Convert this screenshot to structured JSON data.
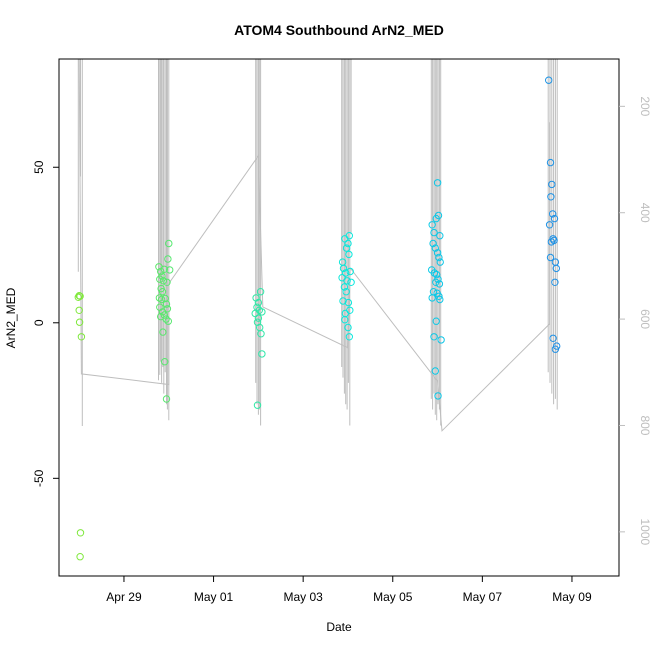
{
  "chart_data": {
    "type": "scatter",
    "title": "ATOM4 Southbound ArN2_MED",
    "xlabel": "Date",
    "ylabel": "ArN2_MED",
    "x_ticks": [
      "Apr 29",
      "May 01",
      "May 03",
      "May 05",
      "May 07",
      "May 09"
    ],
    "x_tick_days": [
      0,
      2,
      4,
      6,
      8,
      10
    ],
    "xlim_days": [
      -1.45,
      11.05
    ],
    "y_ticks": [
      -50,
      0,
      50
    ],
    "ylim": [
      -81.4,
      84.8
    ],
    "y2_ticks": [
      200,
      400,
      600,
      800,
      1000
    ],
    "y2lim": [
      1083,
      111
    ],
    "y2_reversed": true,
    "grid": false,
    "point_color_low": "#7fe83a",
    "point_color_high": "#1f8fe6",
    "line_color": "#bebebe",
    "series": [
      {
        "points": [
          [
            -1.0,
            8.7
          ],
          [
            -0.98,
            8.5
          ],
          [
            -1.02,
            8.2
          ],
          [
            -1.0,
            4.0
          ],
          [
            -0.99,
            0.2
          ],
          [
            -0.95,
            -4.5
          ],
          [
            -0.97,
            -67.5
          ],
          [
            -0.98,
            -75.2
          ],
          [
            0.78,
            18.0
          ],
          [
            0.82,
            16.5
          ],
          [
            0.85,
            15.0
          ],
          [
            0.8,
            14.0
          ],
          [
            0.88,
            13.5
          ],
          [
            0.9,
            17.2
          ],
          [
            0.83,
            11.0
          ],
          [
            0.86,
            10.0
          ],
          [
            0.79,
            8.0
          ],
          [
            0.84,
            7.5
          ],
          [
            0.92,
            7.8
          ],
          [
            0.95,
            6.0
          ],
          [
            0.97,
            4.5
          ],
          [
            0.8,
            5.0
          ],
          [
            0.86,
            3.5
          ],
          [
            0.9,
            2.5
          ],
          [
            0.82,
            2.0
          ],
          [
            0.94,
            1.2
          ],
          [
            1.0,
            25.5
          ],
          [
            0.98,
            20.5
          ],
          [
            1.02,
            17.0
          ],
          [
            0.96,
            13.0
          ],
          [
            0.99,
            0.5
          ],
          [
            0.87,
            -3.0
          ],
          [
            0.91,
            -12.5
          ],
          [
            0.95,
            -24.5
          ],
          [
            2.95,
            8.0
          ],
          [
            3.0,
            6.5
          ],
          [
            3.05,
            10.0
          ],
          [
            2.97,
            5.0
          ],
          [
            3.02,
            4.0
          ],
          [
            3.08,
            3.5
          ],
          [
            2.93,
            3.0
          ],
          [
            3.0,
            1.5
          ],
          [
            2.98,
            0.2
          ],
          [
            3.03,
            -1.5
          ],
          [
            3.06,
            -3.5
          ],
          [
            3.08,
            -10.0
          ],
          [
            2.98,
            -26.5
          ],
          [
            4.88,
            19.5
          ],
          [
            4.93,
            27.0
          ],
          [
            4.97,
            24.0
          ],
          [
            5.03,
            28.0
          ],
          [
            5.0,
            25.5
          ],
          [
            5.02,
            22.0
          ],
          [
            4.9,
            17.5
          ],
          [
            4.95,
            16.0
          ],
          [
            5.05,
            16.5
          ],
          [
            4.87,
            14.5
          ],
          [
            4.98,
            13.5
          ],
          [
            5.07,
            13.0
          ],
          [
            4.92,
            11.5
          ],
          [
            4.96,
            10.0
          ],
          [
            4.89,
            7.0
          ],
          [
            5.01,
            6.5
          ],
          [
            4.94,
            3.0
          ],
          [
            5.04,
            4.0
          ],
          [
            4.93,
            1.0
          ],
          [
            5.0,
            -1.5
          ],
          [
            5.03,
            -4.5
          ],
          [
            6.88,
            31.5
          ],
          [
            6.92,
            29.0
          ],
          [
            6.97,
            33.5
          ],
          [
            7.02,
            34.5
          ],
          [
            7.0,
            45.0
          ],
          [
            7.05,
            28.0
          ],
          [
            6.9,
            25.5
          ],
          [
            6.95,
            24.0
          ],
          [
            7.0,
            22.5
          ],
          [
            7.03,
            21.0
          ],
          [
            7.06,
            19.5
          ],
          [
            6.87,
            17.0
          ],
          [
            6.93,
            16.0
          ],
          [
            6.98,
            15.5
          ],
          [
            7.01,
            14.0
          ],
          [
            7.04,
            12.5
          ],
          [
            6.96,
            13.0
          ],
          [
            6.91,
            10.0
          ],
          [
            6.99,
            9.5
          ],
          [
            7.03,
            8.5
          ],
          [
            7.05,
            7.5
          ],
          [
            6.88,
            8.0
          ],
          [
            6.97,
            0.5
          ],
          [
            6.92,
            -4.5
          ],
          [
            7.08,
            -5.5
          ],
          [
            6.95,
            -15.5
          ],
          [
            7.01,
            -23.5
          ],
          [
            9.48,
            78.0
          ],
          [
            9.52,
            51.5
          ],
          [
            9.55,
            44.5
          ],
          [
            9.53,
            40.5
          ],
          [
            9.57,
            35.0
          ],
          [
            9.61,
            33.5
          ],
          [
            9.5,
            31.5
          ],
          [
            9.58,
            27.0
          ],
          [
            9.54,
            26.0
          ],
          [
            9.6,
            26.5
          ],
          [
            9.52,
            21.0
          ],
          [
            9.63,
            19.5
          ],
          [
            9.65,
            17.5
          ],
          [
            9.62,
            13.0
          ],
          [
            9.58,
            -5.0
          ],
          [
            9.66,
            -7.5
          ],
          [
            9.63,
            -8.5
          ]
        ]
      }
    ],
    "depth_profile": {
      "line_points": [
        [
          -1.0,
          72
        ],
        [
          -0.95,
          703
        ],
        [
          1.0,
          723
        ],
        [
          1.0,
          533
        ],
        [
          3.0,
          293
        ],
        [
          3.1,
          577
        ],
        [
          5.0,
          654
        ],
        [
          5.05,
          504
        ],
        [
          7.0,
          717
        ],
        [
          7.1,
          810
        ],
        [
          9.5,
          609
        ],
        [
          9.5,
          230
        ]
      ],
      "casts": [
        {
          "day": -1.02,
          "bottom": 511
        },
        {
          "day": -0.97,
          "bottom": 332
        },
        {
          "day": -0.93,
          "bottom": 801
        },
        {
          "day": 0.77,
          "bottom": 715
        },
        {
          "day": 0.8,
          "bottom": 705
        },
        {
          "day": 0.82,
          "bottom": 680
        },
        {
          "day": 0.84,
          "bottom": 720
        },
        {
          "day": 0.87,
          "bottom": 690
        },
        {
          "day": 0.89,
          "bottom": 740
        },
        {
          "day": 0.92,
          "bottom": 700
        },
        {
          "day": 0.95,
          "bottom": 760
        },
        {
          "day": 0.97,
          "bottom": 770
        },
        {
          "day": 1.0,
          "bottom": 790
        },
        {
          "day": 2.94,
          "bottom": 720
        },
        {
          "day": 2.97,
          "bottom": 760
        },
        {
          "day": 3.0,
          "bottom": 780
        },
        {
          "day": 3.02,
          "bottom": 770
        },
        {
          "day": 3.05,
          "bottom": 800
        },
        {
          "day": 4.86,
          "bottom": 690
        },
        {
          "day": 4.89,
          "bottom": 710
        },
        {
          "day": 4.92,
          "bottom": 740
        },
        {
          "day": 4.95,
          "bottom": 760
        },
        {
          "day": 4.98,
          "bottom": 770
        },
        {
          "day": 5.01,
          "bottom": 720
        },
        {
          "day": 5.04,
          "bottom": 800
        },
        {
          "day": 5.07,
          "bottom": 440
        },
        {
          "day": 6.86,
          "bottom": 750
        },
        {
          "day": 6.89,
          "bottom": 770
        },
        {
          "day": 6.92,
          "bottom": 740
        },
        {
          "day": 6.95,
          "bottom": 780
        },
        {
          "day": 6.98,
          "bottom": 790
        },
        {
          "day": 7.01,
          "bottom": 760
        },
        {
          "day": 7.04,
          "bottom": 770
        },
        {
          "day": 7.07,
          "bottom": 800
        },
        {
          "day": 9.47,
          "bottom": 700
        },
        {
          "day": 9.51,
          "bottom": 720
        },
        {
          "day": 9.55,
          "bottom": 740
        },
        {
          "day": 9.59,
          "bottom": 760
        },
        {
          "day": 9.63,
          "bottom": 750
        },
        {
          "day": 9.67,
          "bottom": 770
        }
      ]
    }
  }
}
